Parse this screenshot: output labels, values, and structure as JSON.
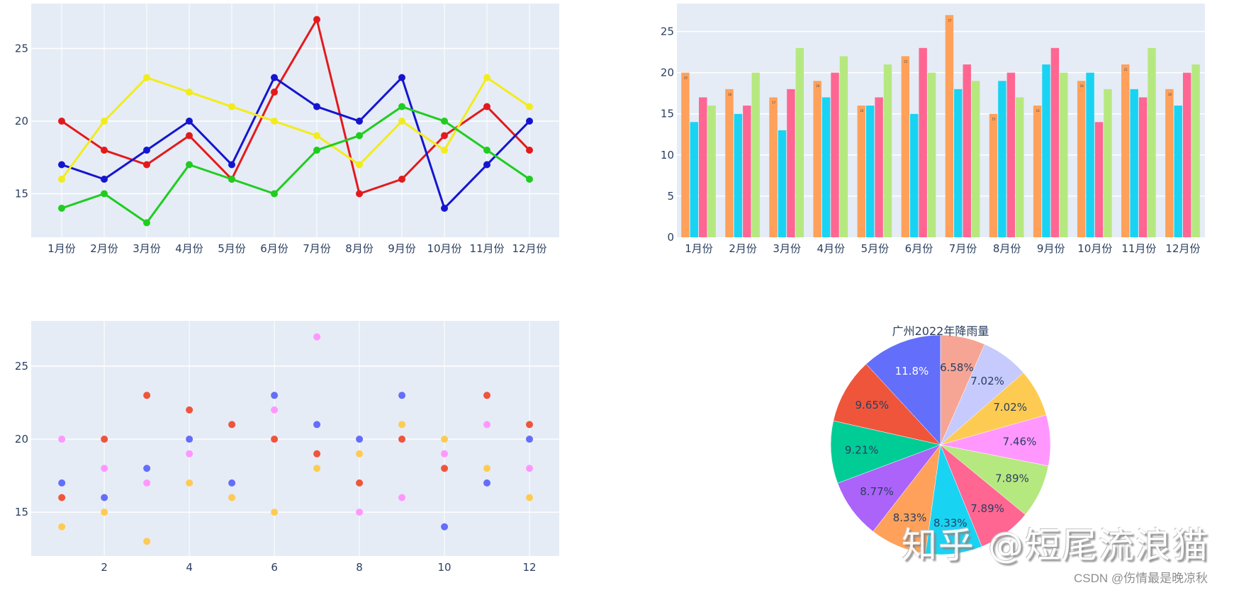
{
  "chart_data": [
    {
      "type": "line",
      "title": "",
      "xlabel": "",
      "ylabel": "",
      "categories": [
        "1月份",
        "2月份",
        "3月份",
        "4月份",
        "5月份",
        "6月份",
        "7月份",
        "8月份",
        "9月份",
        "10月份",
        "11月份",
        "12月份"
      ],
      "ylim": [
        12,
        28.1
      ],
      "yticks": [
        15,
        20,
        25
      ],
      "grid": true,
      "markers": true,
      "series": [
        {
          "name": "series-red",
          "color": "#e31a1c",
          "values": [
            20,
            18,
            17,
            19,
            16,
            22,
            27,
            15,
            16,
            19,
            21,
            18
          ]
        },
        {
          "name": "series-blue",
          "color": "#1515d0",
          "values": [
            17,
            16,
            18,
            20,
            17,
            23,
            21,
            20,
            23,
            14,
            17,
            20
          ]
        },
        {
          "name": "series-yellow",
          "color": "#f2ec1c",
          "values": [
            16,
            20,
            23,
            22,
            21,
            20,
            19,
            17,
            20,
            18,
            23,
            21
          ]
        },
        {
          "name": "series-green",
          "color": "#1fcd1f",
          "values": [
            14,
            15,
            13,
            17,
            16,
            15,
            18,
            19,
            21,
            20,
            18,
            16
          ]
        }
      ]
    },
    {
      "type": "bar",
      "title": "",
      "xlabel": "",
      "ylabel": "",
      "categories": [
        "1月份",
        "2月份",
        "3月份",
        "4月份",
        "5月份",
        "6月份",
        "7月份",
        "8月份",
        "9月份",
        "10月份",
        "11月份",
        "12月份"
      ],
      "ylim": [
        0,
        28.4
      ],
      "yticks": [
        0,
        5,
        10,
        15,
        20,
        25
      ],
      "grid": true,
      "series": [
        {
          "name": "bar-orange",
          "color": "#FFA15A",
          "values": [
            20,
            18,
            17,
            19,
            16,
            22,
            27,
            15,
            16,
            19,
            21,
            18
          ],
          "text_labels": true
        },
        {
          "name": "bar-cyan",
          "color": "#19D3F3",
          "values": [
            14,
            15,
            13,
            17,
            16,
            15,
            18,
            19,
            21,
            20,
            18,
            16
          ]
        },
        {
          "name": "bar-pink",
          "color": "#FF6692",
          "values": [
            17,
            16,
            18,
            20,
            17,
            23,
            21,
            20,
            23,
            14,
            17,
            20
          ]
        },
        {
          "name": "bar-lightgreen",
          "color": "#B6E880",
          "values": [
            16,
            20,
            23,
            22,
            21,
            20,
            19,
            17,
            20,
            18,
            23,
            21
          ]
        }
      ]
    },
    {
      "type": "scatter",
      "title": "",
      "xlabel": "",
      "ylabel": "",
      "x": [
        1,
        2,
        3,
        4,
        5,
        6,
        7,
        8,
        9,
        10,
        11,
        12
      ],
      "xlim": [
        0.28,
        12.7
      ],
      "ylim": [
        12,
        28.1
      ],
      "xticks": [
        2,
        4,
        6,
        8,
        10,
        12
      ],
      "yticks": [
        15,
        20,
        25
      ],
      "grid": true,
      "series": [
        {
          "name": "scatter-blue",
          "color": "#636EFA",
          "values": [
            17,
            16,
            18,
            20,
            17,
            23,
            21,
            20,
            23,
            14,
            17,
            20
          ]
        },
        {
          "name": "scatter-pink",
          "color": "#FF97FF",
          "values": [
            20,
            18,
            17,
            19,
            16,
            22,
            27,
            15,
            16,
            19,
            21,
            18
          ]
        },
        {
          "name": "scatter-red",
          "color": "#EF553B",
          "values": [
            16,
            20,
            23,
            22,
            21,
            20,
            19,
            17,
            20,
            18,
            23,
            21
          ]
        },
        {
          "name": "scatter-yellow",
          "color": "#FECB52",
          "values": [
            14,
            15,
            13,
            17,
            16,
            15,
            18,
            19,
            21,
            20,
            18,
            16
          ]
        }
      ]
    },
    {
      "type": "pie",
      "title": "广州2022年降雨量",
      "direction": "counterclockwise",
      "start": "top",
      "slices": [
        {
          "value": 27,
          "label": "11.8%",
          "color": "#636EFA",
          "text_color": "#ffffff"
        },
        {
          "value": 22,
          "label": "9.65%",
          "color": "#EF553B",
          "text_color": "#2a3f5f"
        },
        {
          "value": 21,
          "label": "9.21%",
          "color": "#00CC96",
          "text_color": "#2a3f5f"
        },
        {
          "value": 20,
          "label": "8.77%",
          "color": "#AB63FA",
          "text_color": "#2a3f5f"
        },
        {
          "value": 19,
          "label": "8.33%",
          "color": "#FFA15A",
          "text_color": "#2a3f5f"
        },
        {
          "value": 19,
          "label": "8.33%",
          "color": "#19D3F3",
          "text_color": "#2a3f5f"
        },
        {
          "value": 18,
          "label": "7.89%",
          "color": "#FF6692",
          "text_color": "#2a3f5f"
        },
        {
          "value": 18,
          "label": "7.89%",
          "color": "#B6E880",
          "text_color": "#2a3f5f"
        },
        {
          "value": 17,
          "label": "7.46%",
          "color": "#FF97FF",
          "text_color": "#2a3f5f"
        },
        {
          "value": 16,
          "label": "7.02%",
          "color": "#FECB52",
          "text_color": "#2a3f5f"
        },
        {
          "value": 16,
          "label": "7.02%",
          "color": "#C6CAFD",
          "text_color": "#2a3f5f"
        },
        {
          "value": 15,
          "label": "6.58%",
          "color": "#F6A595",
          "text_color": "#2a3f5f"
        }
      ]
    }
  ],
  "watermarks": {
    "main": "知乎 @短尾流浪猫",
    "csdn": "CSDN @伤情最是晚凉秋"
  },
  "theme": {
    "plot_bg": "#E5ECF6",
    "grid": "#ffffff",
    "tick_text": "#2a3f5f"
  }
}
